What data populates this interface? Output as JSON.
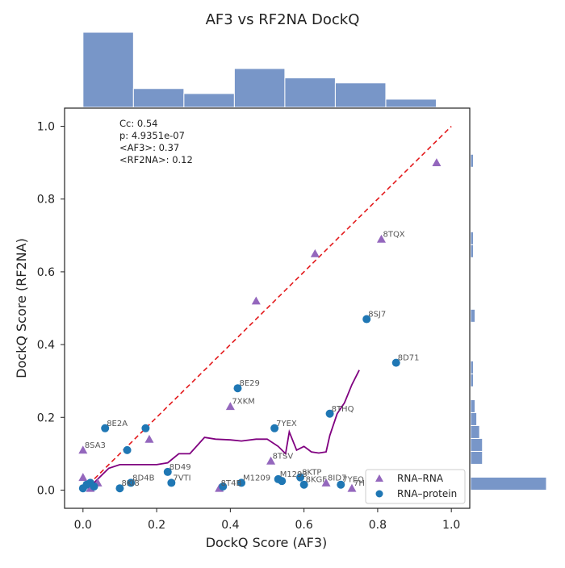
{
  "chart_data": {
    "type": "scatter",
    "title": "AF3 vs RF2NA DockQ",
    "xlabel": "DockQ Score (AF3)",
    "ylabel": "DockQ Score (RF2NA)",
    "xlim": [
      -0.05,
      1.05
    ],
    "ylim": [
      -0.05,
      1.05
    ],
    "x_ticks": [
      0.0,
      0.2,
      0.4,
      0.6,
      0.8,
      1.0
    ],
    "y_ticks": [
      0.0,
      0.2,
      0.4,
      0.6,
      0.8,
      1.0
    ],
    "x_tick_labels": [
      "0.0",
      "0.2",
      "0.4",
      "0.6",
      "0.8",
      "1.0"
    ],
    "y_tick_labels": [
      "0.0",
      "0.2",
      "0.4",
      "0.6",
      "0.8",
      "1.0"
    ],
    "grid": false,
    "legend_position": "lower-right",
    "stats_lines": [
      "Cc: 0.54",
      "p: 4.9351e-07",
      "<AF3>: 0.37",
      "<RF2NA>: 0.12"
    ],
    "series": [
      {
        "name": "RNA–RNA",
        "marker": "triangle",
        "color": "#9467bd",
        "points": [
          {
            "x": 0.96,
            "y": 0.9,
            "label": ""
          },
          {
            "x": 0.81,
            "y": 0.69,
            "label": "8TQX"
          },
          {
            "x": 0.63,
            "y": 0.65,
            "label": ""
          },
          {
            "x": 0.47,
            "y": 0.52,
            "label": ""
          },
          {
            "x": 0.4,
            "y": 0.23,
            "label": "7XKM"
          },
          {
            "x": 0.18,
            "y": 0.14,
            "label": ""
          },
          {
            "x": 0.51,
            "y": 0.08,
            "label": "8TSV"
          },
          {
            "x": 0.0,
            "y": 0.11,
            "label": "8SA3"
          },
          {
            "x": 0.0,
            "y": 0.035,
            "label": ""
          },
          {
            "x": 0.02,
            "y": 0.005,
            "label": ""
          },
          {
            "x": 0.04,
            "y": 0.02,
            "label": ""
          },
          {
            "x": 0.37,
            "y": 0.005,
            "label": "8T4B"
          },
          {
            "x": 0.66,
            "y": 0.02,
            "label": "8ID7"
          },
          {
            "x": 0.73,
            "y": 0.005,
            "label": "7H"
          }
        ]
      },
      {
        "name": "RNA–protein",
        "marker": "circle",
        "color": "#1f77b4",
        "points": [
          {
            "x": 0.77,
            "y": 0.47,
            "label": "8SJ7"
          },
          {
            "x": 0.85,
            "y": 0.35,
            "label": "8D71"
          },
          {
            "x": 0.42,
            "y": 0.28,
            "label": "8E29"
          },
          {
            "x": 0.67,
            "y": 0.21,
            "label": "8THQ"
          },
          {
            "x": 0.52,
            "y": 0.17,
            "label": "7YEX"
          },
          {
            "x": 0.06,
            "y": 0.17,
            "label": "8E2A"
          },
          {
            "x": 0.17,
            "y": 0.17,
            "label": ""
          },
          {
            "x": 0.12,
            "y": 0.11,
            "label": ""
          },
          {
            "x": 0.23,
            "y": 0.05,
            "label": "8D49"
          },
          {
            "x": 0.13,
            "y": 0.02,
            "label": "8D4B"
          },
          {
            "x": 0.24,
            "y": 0.02,
            "label": "7VTI"
          },
          {
            "x": 0.1,
            "y": 0.005,
            "label": "8KI8"
          },
          {
            "x": 0.38,
            "y": 0.01,
            "label": ""
          },
          {
            "x": 0.43,
            "y": 0.02,
            "label": "M1209"
          },
          {
            "x": 0.53,
            "y": 0.03,
            "label": "M1293"
          },
          {
            "x": 0.54,
            "y": 0.025,
            "label": ""
          },
          {
            "x": 0.59,
            "y": 0.035,
            "label": "8KTP"
          },
          {
            "x": 0.6,
            "y": 0.015,
            "label": "8KGF"
          },
          {
            "x": 0.7,
            "y": 0.015,
            "label": "7YEO"
          },
          {
            "x": 0.0,
            "y": 0.005,
            "label": ""
          },
          {
            "x": 0.01,
            "y": 0.015,
            "label": ""
          },
          {
            "x": 0.02,
            "y": 0.02,
            "label": ""
          },
          {
            "x": 0.03,
            "y": 0.01,
            "label": ""
          }
        ]
      }
    ],
    "reference_line": {
      "from": [
        0.0,
        0.0
      ],
      "to": [
        1.0,
        1.0
      ],
      "color": "#e31a1c",
      "style": "dashed"
    },
    "trend_line": {
      "color": "#800080",
      "points": [
        [
          0.0,
          0.0
        ],
        [
          0.03,
          0.02
        ],
        [
          0.05,
          0.04
        ],
        [
          0.07,
          0.06
        ],
        [
          0.1,
          0.07
        ],
        [
          0.13,
          0.07
        ],
        [
          0.16,
          0.07
        ],
        [
          0.2,
          0.07
        ],
        [
          0.23,
          0.075
        ],
        [
          0.26,
          0.1
        ],
        [
          0.29,
          0.1
        ],
        [
          0.33,
          0.145
        ],
        [
          0.36,
          0.14
        ],
        [
          0.4,
          0.138
        ],
        [
          0.43,
          0.135
        ],
        [
          0.47,
          0.14
        ],
        [
          0.5,
          0.14
        ],
        [
          0.53,
          0.12
        ],
        [
          0.55,
          0.1
        ],
        [
          0.56,
          0.16
        ],
        [
          0.58,
          0.11
        ],
        [
          0.6,
          0.12
        ],
        [
          0.62,
          0.105
        ],
        [
          0.64,
          0.102
        ],
        [
          0.66,
          0.105
        ],
        [
          0.67,
          0.15
        ],
        [
          0.69,
          0.21
        ],
        [
          0.71,
          0.24
        ],
        [
          0.73,
          0.29
        ],
        [
          0.75,
          0.33
        ]
      ]
    },
    "top_histogram": {
      "bins": [
        0.0,
        0.137,
        0.274,
        0.411,
        0.548,
        0.685,
        0.822,
        0.959
      ],
      "counts": [
        12,
        3,
        2.2,
        6.2,
        4.7,
        3.9,
        1.3
      ]
    },
    "right_histogram": {
      "bins": [
        0.0,
        0.0355,
        0.071,
        0.1065,
        0.142,
        0.1775,
        0.213,
        0.2485,
        0.284,
        0.3195,
        0.355,
        0.3905,
        0.426,
        0.4615,
        0.497,
        0.5325,
        0.568,
        0.6035,
        0.639,
        0.6745,
        0.71,
        0.7455,
        0.781,
        0.8165,
        0.852,
        0.8875,
        0.923
      ],
      "counts": [
        18.5,
        0,
        2.9,
        2.9,
        2.2,
        1.5,
        1.1,
        0,
        0.7,
        0.7,
        0,
        0,
        0,
        1.1,
        0,
        0,
        0,
        0,
        0.7,
        0.7,
        0,
        0,
        0,
        0,
        0,
        0.7
      ]
    },
    "histogram_color": "#7896c8"
  }
}
